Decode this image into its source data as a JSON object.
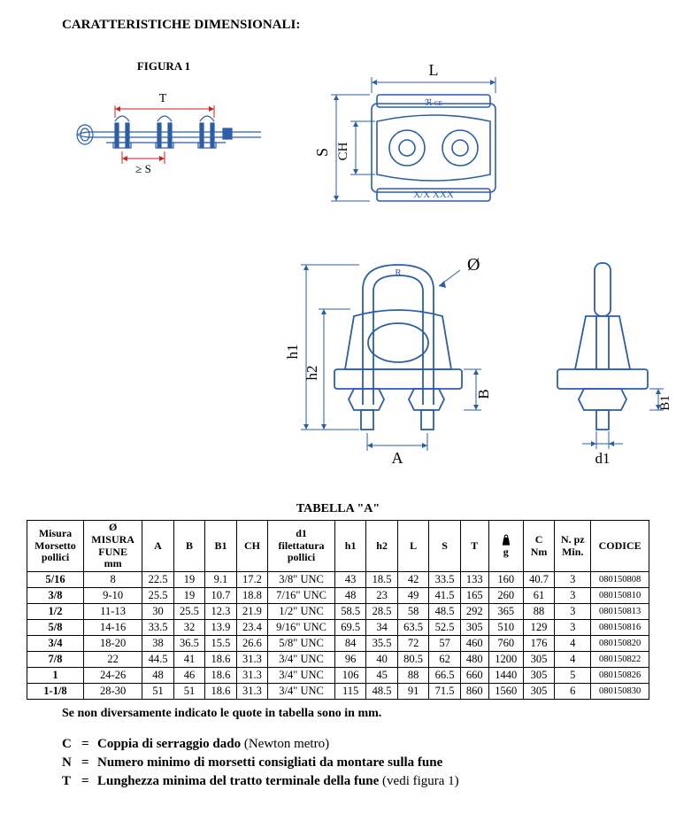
{
  "title": "CARATTERISTICHE DIMENSIONALI:",
  "figure1_label": "FIGURA 1",
  "diagram_labels": {
    "T": "T",
    "S": "≥ S",
    "L": "L",
    "CH": "CH",
    "Sside": "S",
    "h1": "h1",
    "h2": "h2",
    "A": "A",
    "B": "B",
    "B1": "B1",
    "d1": "d1",
    "phi": "Ø",
    "R": "R",
    "mark": "X/X  XXX",
    "ce": "ℜ ᴄᴇ"
  },
  "table_title": "TABELLA \"A\"",
  "columns": [
    {
      "main": "Misura",
      "sub": "Morsetto",
      "sub2": "pollici"
    },
    {
      "main": "Ø",
      "sub": "MISURA",
      "sub2": "FUNE",
      "sub3": "mm"
    },
    {
      "main": "A"
    },
    {
      "main": "B"
    },
    {
      "main": "B1"
    },
    {
      "main": "CH"
    },
    {
      "main": "d1",
      "sub": "filettatura",
      "sub2": "pollici"
    },
    {
      "main": "h1"
    },
    {
      "main": "h2"
    },
    {
      "main": "L"
    },
    {
      "main": "S"
    },
    {
      "main": "T"
    },
    {
      "icon": "weight",
      "sub": "g"
    },
    {
      "main": "C",
      "sub": "Nm"
    },
    {
      "main": "N. pz",
      "sub": "Min."
    },
    {
      "main": "CODICE"
    }
  ],
  "rows": [
    [
      "5/16",
      "8",
      "22.5",
      "19",
      "9.1",
      "17.2",
      "3/8\" UNC",
      "43",
      "18.5",
      "42",
      "33.5",
      "133",
      "160",
      "40.7",
      "3",
      "080150808"
    ],
    [
      "3/8",
      "9-10",
      "25.5",
      "19",
      "10.7",
      "18.8",
      "7/16\" UNC",
      "48",
      "23",
      "49",
      "41.5",
      "165",
      "260",
      "61",
      "3",
      "080150810"
    ],
    [
      "1/2",
      "11-13",
      "30",
      "25.5",
      "12.3",
      "21.9",
      "1/2\" UNC",
      "58.5",
      "28.5",
      "58",
      "48.5",
      "292",
      "365",
      "88",
      "3",
      "080150813"
    ],
    [
      "5/8",
      "14-16",
      "33.5",
      "32",
      "13.9",
      "23.4",
      "9/16\" UNC",
      "69.5",
      "34",
      "63.5",
      "52.5",
      "305",
      "510",
      "129",
      "3",
      "080150816"
    ],
    [
      "3/4",
      "18-20",
      "38",
      "36.5",
      "15.5",
      "26.6",
      "5/8\" UNC",
      "84",
      "35.5",
      "72",
      "57",
      "460",
      "760",
      "176",
      "4",
      "080150820"
    ],
    [
      "7/8",
      "22",
      "44.5",
      "41",
      "18.6",
      "31.3",
      "3/4\" UNC",
      "96",
      "40",
      "80.5",
      "62",
      "480",
      "1200",
      "305",
      "4",
      "080150822"
    ],
    [
      "1",
      "24-26",
      "48",
      "46",
      "18.6",
      "31.3",
      "3/4\" UNC",
      "106",
      "45",
      "88",
      "66.5",
      "660",
      "1440",
      "305",
      "5",
      "080150826"
    ],
    [
      "1-1/8",
      "28-30",
      "51",
      "51",
      "18.6",
      "31.3",
      "3/4\" UNC",
      "115",
      "48.5",
      "91",
      "71.5",
      "860",
      "1560",
      "305",
      "6",
      "080150830"
    ]
  ],
  "note": "Se non diversamente indicato le quote in tabella sono in mm.",
  "legend": [
    {
      "sym": "C",
      "bold": "Coppia di serraggio dado",
      "light": " (Newton metro)"
    },
    {
      "sym": "N",
      "bold": "Numero minimo di morsetti consigliati da montare sulla fune",
      "light": ""
    },
    {
      "sym": "T",
      "bold": "Lunghezza minima del tratto terminale della fune",
      "light": " (vedi figura 1)"
    }
  ],
  "colors": {
    "line": "#2b5ea8",
    "redline": "#d02222",
    "text": "#000000"
  }
}
